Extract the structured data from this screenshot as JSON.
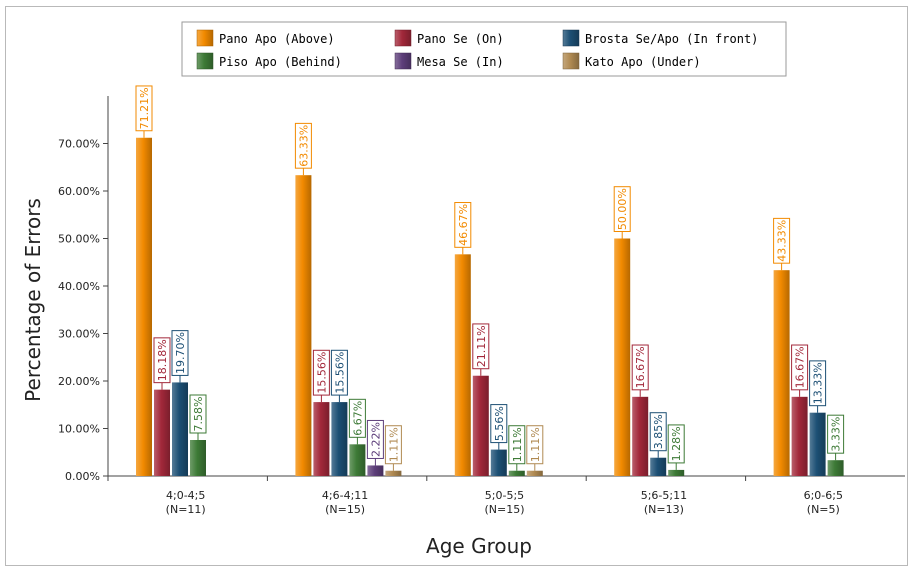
{
  "chart_data": {
    "type": "bar",
    "xlabel": "Age Group",
    "ylabel": "Percentage of Errors",
    "ylim": [
      0,
      80
    ],
    "yticks": [
      0,
      10,
      20,
      30,
      40,
      50,
      60,
      70
    ],
    "ytick_labels": [
      "0.00%",
      "10.00%",
      "20.00%",
      "30.00%",
      "40.00%",
      "50.00%",
      "60.00%",
      "70.00%"
    ],
    "categories": [
      [
        "4;0-4;5",
        "(N=11)"
      ],
      [
        "4;6-4;11",
        "(N=15)"
      ],
      [
        "5;0-5;5",
        "(N=15)"
      ],
      [
        "5;6-5;11",
        "(N=13)"
      ],
      [
        "6;0-6;5",
        "(N=5)"
      ]
    ],
    "legend_position": "top",
    "grid": false,
    "series": [
      {
        "name": "Pano Apo (Above)",
        "color": "#f28a00",
        "values": [
          71.21,
          63.33,
          46.67,
          50.0,
          43.33
        ],
        "labels": [
          "71.21%",
          "63.33%",
          "46.67%",
          "50.00%",
          "43.33%"
        ]
      },
      {
        "name": "Pano Se (On)",
        "color": "#a2283a",
        "values": [
          18.18,
          15.56,
          21.11,
          16.67,
          16.67
        ],
        "labels": [
          "18.18%",
          "15.56%",
          "21.11%",
          "16.67%",
          "16.67%"
        ]
      },
      {
        "name": "Brosta Se/Apo (In front)",
        "color": "#1c4f74",
        "values": [
          19.7,
          15.56,
          5.56,
          3.85,
          13.33
        ],
        "labels": [
          "19.70%",
          "15.56%",
          "5.56%",
          "3.85%",
          "13.33%"
        ]
      },
      {
        "name": "Piso Apo (Behind)",
        "color": "#3d7a36",
        "values": [
          7.58,
          6.67,
          1.11,
          1.28,
          3.33
        ],
        "labels": [
          "7.58%",
          "6.67%",
          "1.11%",
          "1.28%",
          "3.33%"
        ]
      },
      {
        "name": "Mesa Se (In)",
        "color": "#5d3e7a",
        "values": [
          null,
          2.22,
          null,
          null,
          null
        ],
        "labels": [
          null,
          "2.22%",
          null,
          null,
          null
        ]
      },
      {
        "name": "Kato Apo (Under)",
        "color": "#b08a52",
        "values": [
          null,
          1.11,
          1.11,
          null,
          null
        ],
        "labels": [
          null,
          "1.11%",
          "1.11%",
          null,
          null
        ]
      }
    ]
  }
}
